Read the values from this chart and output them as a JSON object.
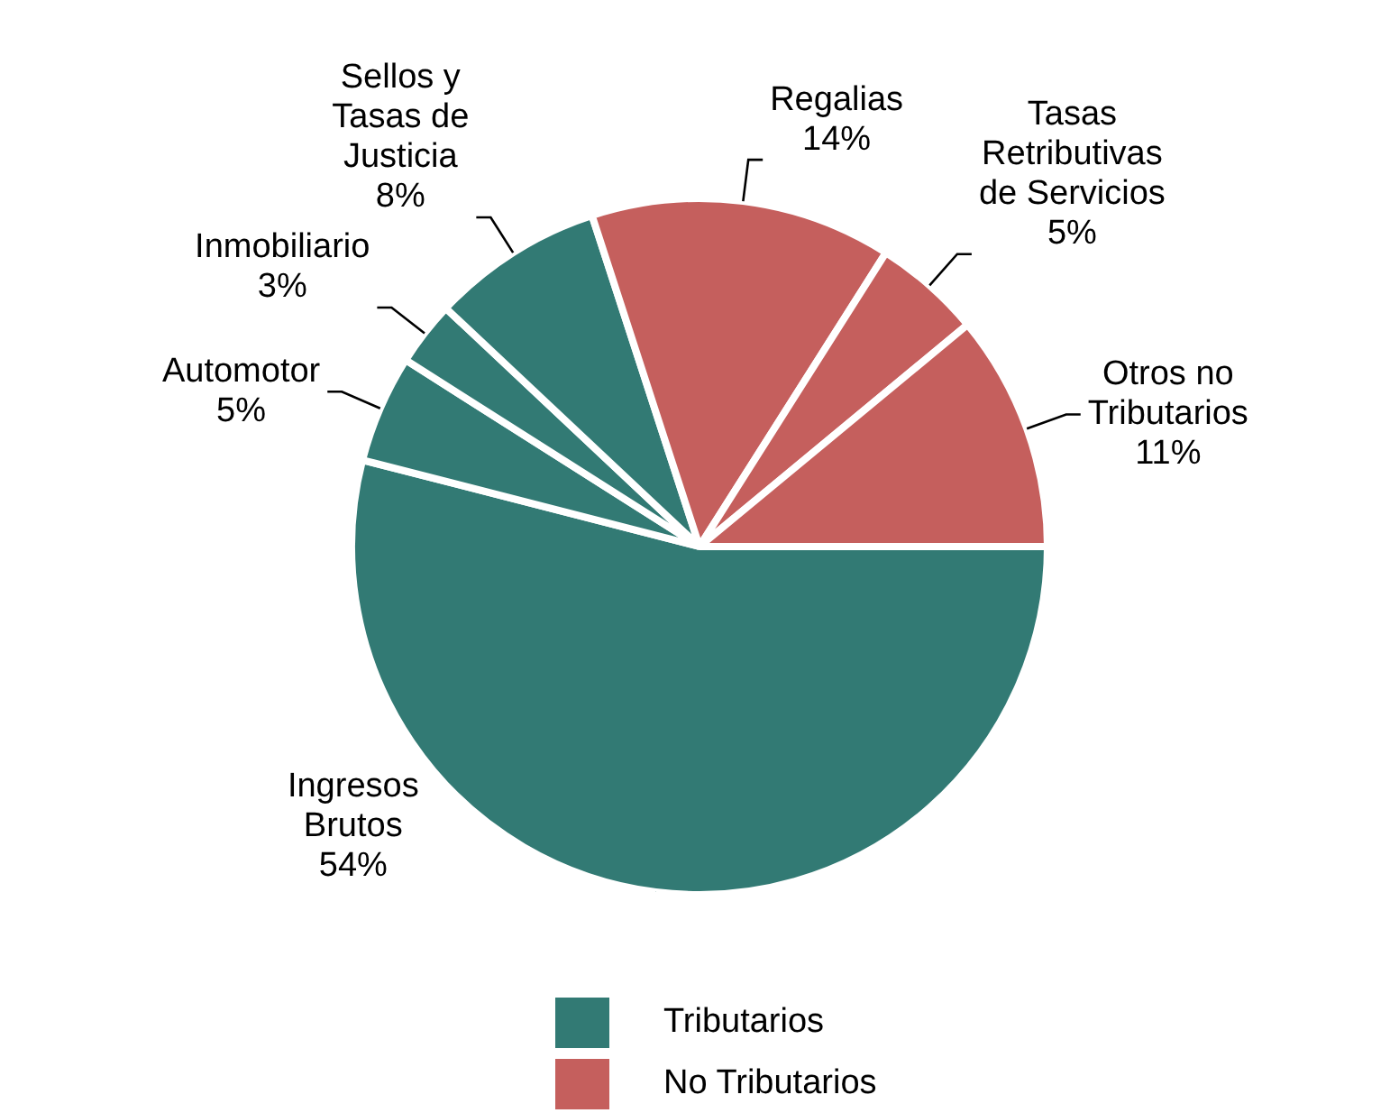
{
  "chart_data": {
    "type": "pie",
    "categories": [
      "Ingresos Brutos",
      "Automotor",
      "Inmobiliario",
      "Sellos y Tasas de Justicia",
      "Regalias",
      "Tasas Retributivas de Servicios",
      "Otros no Tributarios"
    ],
    "values": [
      54,
      5,
      3,
      8,
      14,
      5,
      11
    ],
    "colors": [
      "#327a74",
      "#327a74",
      "#327a74",
      "#327a74",
      "#c55f5d",
      "#c55f5d",
      "#c55f5d"
    ],
    "value_labels": [
      "54%",
      "5%",
      "3%",
      "8%",
      "14%",
      "5%",
      "11%"
    ],
    "annotations": [
      "Tributarios",
      "No Tributarios"
    ]
  }
}
